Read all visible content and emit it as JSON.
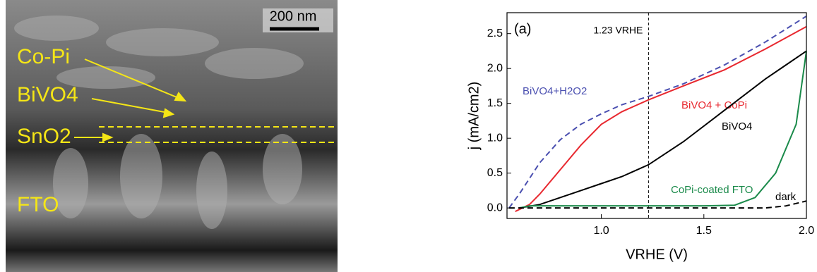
{
  "image": {
    "scale_bar": "200 nm",
    "labels": [
      "Co-Pi",
      "BiVO4",
      "SnO2",
      "FTO"
    ]
  },
  "chart_data": {
    "type": "line",
    "panel": "(a)",
    "x_label": "VRHE (V)",
    "y_label": "j (mA/cm2)",
    "xlim": [
      0.54,
      2.0
    ],
    "ylim": [
      -0.15,
      2.8
    ],
    "xticks": [
      {
        "value": 1.0,
        "label": "1.0"
      },
      {
        "value": 1.5,
        "label": "1.5"
      },
      {
        "value": 2.0,
        "label": "2.0"
      }
    ],
    "yticks": [
      {
        "value": 0,
        "label": "0.0"
      },
      {
        "value": 0.5,
        "label": "0.5"
      },
      {
        "value": 1.0,
        "label": "1.0"
      },
      {
        "value": 1.5,
        "label": "1.5"
      },
      {
        "value": 2.0,
        "label": "2.0"
      },
      {
        "value": 2.5,
        "label": "2.5"
      }
    ],
    "vline": {
      "x": 1.23,
      "label": "1.23 VRHE"
    },
    "series": [
      {
        "name": "BiVO4+H2O2",
        "color": "#4a4fb0",
        "dash": true,
        "x": [
          0.55,
          0.6,
          0.7,
          0.8,
          0.9,
          1.0,
          1.1,
          1.23,
          1.4,
          1.6,
          1.8,
          2.0
        ],
        "values": [
          0.0,
          0.2,
          0.65,
          0.98,
          1.2,
          1.35,
          1.48,
          1.6,
          1.78,
          2.05,
          2.38,
          2.75
        ]
      },
      {
        "name": "BiVO4 + CoPi",
        "color": "#e8282f",
        "dash": false,
        "x": [
          0.58,
          0.65,
          0.7,
          0.8,
          0.9,
          1.0,
          1.1,
          1.23,
          1.4,
          1.6,
          1.8,
          2.0
        ],
        "values": [
          -0.05,
          0.05,
          0.2,
          0.55,
          0.9,
          1.2,
          1.38,
          1.55,
          1.75,
          1.98,
          2.28,
          2.6
        ]
      },
      {
        "name": "BiVO4",
        "color": "#000000",
        "dash": false,
        "x": [
          0.6,
          0.7,
          0.8,
          0.9,
          1.0,
          1.1,
          1.23,
          1.4,
          1.6,
          1.8,
          1.9,
          2.0
        ],
        "values": [
          0.0,
          0.05,
          0.15,
          0.25,
          0.35,
          0.45,
          0.62,
          0.95,
          1.4,
          1.85,
          2.05,
          2.25
        ]
      },
      {
        "name": "CoPi-coated FTO",
        "color": "#1a8a4a",
        "dash": false,
        "x": [
          0.6,
          0.65,
          1.0,
          1.5,
          1.65,
          1.75,
          1.85,
          1.95,
          2.0
        ],
        "values": [
          0.0,
          0.03,
          0.03,
          0.03,
          0.04,
          0.15,
          0.5,
          1.2,
          2.25
        ]
      },
      {
        "name": "dark",
        "color": "#000000",
        "dash": true,
        "x": [
          0.55,
          1.5,
          1.8,
          1.9,
          2.0
        ],
        "values": [
          0.0,
          0.0,
          0.0,
          0.03,
          0.1
        ]
      }
    ]
  }
}
